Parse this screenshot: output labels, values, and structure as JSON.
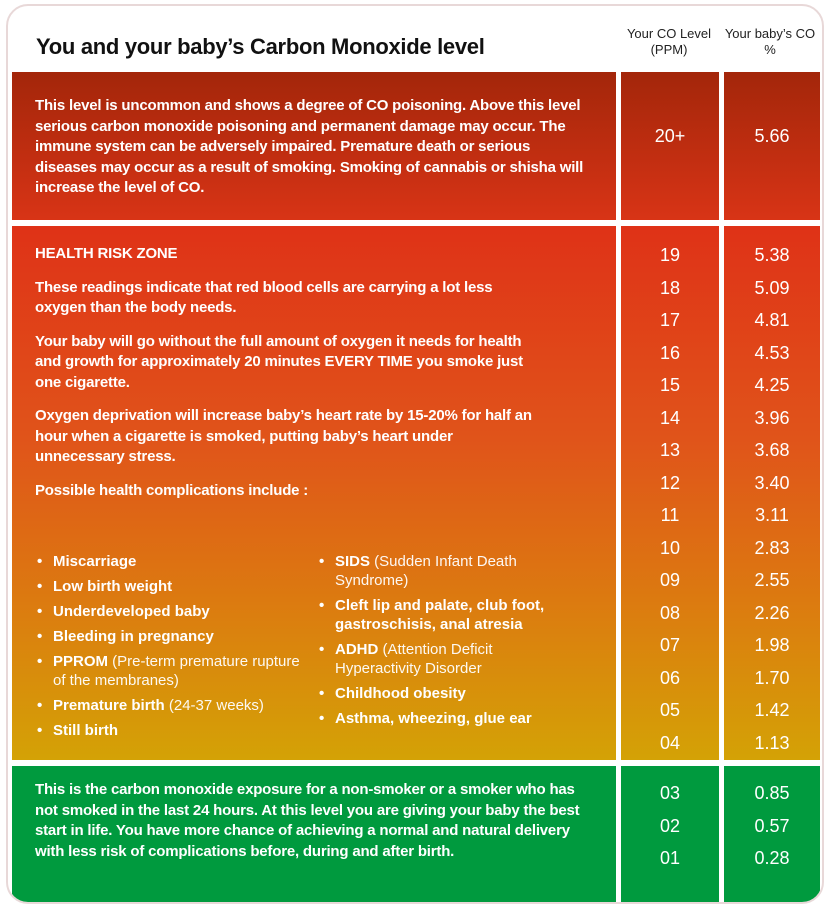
{
  "title": "You and your baby’s Carbon Monoxide level",
  "headers": {
    "co_level": "Your CO Level (PPM)",
    "baby_co": "Your baby’s CO %"
  },
  "colors": {
    "danger": "#a3260a",
    "risk_top": "#df3217",
    "risk_bottom": "#d4a206",
    "safe": "#009a3e"
  },
  "danger": {
    "text": "This level is uncommon and shows a degree of CO poisoning. Above this level serious carbon monoxide poisoning and permanent damage may occur. The immune system can be adversely impaired. Premature death or serious diseases may occur as a result of smoking. Smoking of cannabis or shisha will increase the level of CO.",
    "ppm": "20+",
    "pct": "5.66"
  },
  "risk": {
    "heading": "HEALTH RISK ZONE",
    "p1": "These readings indicate that red blood cells are carrying a lot less oxygen than the body needs.",
    "p2": "Your baby will go without the full amount of oxygen it needs for health and growth for approximately 20 minutes EVERY TIME you smoke just one cigarette.",
    "p3": "Oxygen deprivation will increase baby’s heart rate by 15-20% for half an hour when a cigarette is smoked, putting baby’s heart under unnecessary stress.",
    "complications_heading": "Possible health complications include :",
    "list_left": [
      {
        "b": "Miscarriage",
        "n": ""
      },
      {
        "b": "Low birth weight",
        "n": ""
      },
      {
        "b": "Underdeveloped baby",
        "n": ""
      },
      {
        "b": "Bleeding in pregnancy",
        "n": ""
      },
      {
        "b": "PPROM",
        "n": " (Pre-term premature rupture of the membranes)"
      },
      {
        "b": "Premature birth",
        "n": " (24-37 weeks)"
      },
      {
        "b": "Still birth",
        "n": ""
      }
    ],
    "list_right": [
      {
        "b": "SIDS",
        "n": " (Sudden Infant Death Syndrome)"
      },
      {
        "b": "Cleft lip and palate, club foot, gastroschisis, anal atresia",
        "n": ""
      },
      {
        "b": "ADHD",
        "n": " (Attention Deficit Hyperactivity Disorder"
      },
      {
        "b": "Childhood obesity",
        "n": ""
      },
      {
        "b": "Asthma, wheezing, glue ear",
        "n": ""
      }
    ],
    "rows": [
      {
        "ppm": "19",
        "pct": "5.38"
      },
      {
        "ppm": "18",
        "pct": "5.09"
      },
      {
        "ppm": "17",
        "pct": "4.81"
      },
      {
        "ppm": "16",
        "pct": "4.53"
      },
      {
        "ppm": "15",
        "pct": "4.25"
      },
      {
        "ppm": "14",
        "pct": "3.96"
      },
      {
        "ppm": "13",
        "pct": "3.68"
      },
      {
        "ppm": "12",
        "pct": "3.40"
      },
      {
        "ppm": "11",
        "pct": "3.11"
      },
      {
        "ppm": "10",
        "pct": "2.83"
      },
      {
        "ppm": "09",
        "pct": "2.55"
      },
      {
        "ppm": "08",
        "pct": "2.26"
      },
      {
        "ppm": "07",
        "pct": "1.98"
      },
      {
        "ppm": "06",
        "pct": "1.70"
      },
      {
        "ppm": "05",
        "pct": "1.42"
      },
      {
        "ppm": "04",
        "pct": "1.13"
      }
    ]
  },
  "safe": {
    "text": "This is the carbon monoxide exposure for a non-smoker or a smoker who has not smoked in the last 24 hours. At this level you are giving your baby the best start in life. You have more chance of achieving a normal and natural delivery with less risk of complications before, during and after birth.",
    "rows": [
      {
        "ppm": "03",
        "pct": "0.85"
      },
      {
        "ppm": "02",
        "pct": "0.57"
      },
      {
        "ppm": "01",
        "pct": "0.28"
      }
    ]
  }
}
